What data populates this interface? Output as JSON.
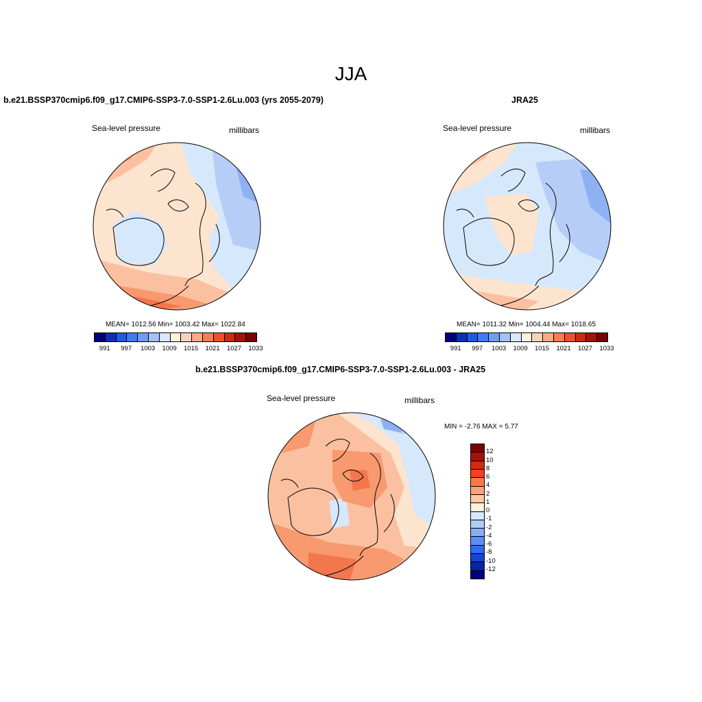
{
  "season": "JJA",
  "panel_left": {
    "title": "b.e21.BSSP370cmip6.f09_g17.CMIP6-SSP3-7.0-SSP1-2.6Lu.003 (yrs 2055-2079)",
    "variable": "Sea-level pressure",
    "units": "millibars",
    "stats": "MEAN= 1012.56  Min= 1003.42  Max= 1022.84"
  },
  "panel_right": {
    "title": "JRA25",
    "variable": "Sea-level pressure",
    "units": "millibars",
    "stats": "MEAN= 1011.32  Min= 1004.44  Max= 1018.65"
  },
  "panel_diff": {
    "title": "b.e21.BSSP370cmip6.f09_g17.CMIP6-SSP3-7.0-SSP1-2.6Lu.003 - JRA25",
    "variable": "Sea-level pressure",
    "units": "millibars",
    "minmax": "MIN =  -2.76 MAX =   5.77"
  },
  "colorbar_abs": {
    "colors": [
      "#000080",
      "#0a2fb8",
      "#1f5ae6",
      "#3f7af5",
      "#6f9cf5",
      "#a4c0f5",
      "#d6e8fb",
      "#fff0e0",
      "#fdd3b8",
      "#fbaa86",
      "#f77c53",
      "#f04f27",
      "#cf2a0a",
      "#a51208",
      "#7a0404"
    ],
    "ticks": [
      "991",
      "997",
      "1003",
      "1009",
      "1015",
      "1021",
      "1027",
      "1033"
    ]
  },
  "colorbar_diff": {
    "colors": [
      "#7a0404",
      "#a51208",
      "#d42b0a",
      "#f0441c",
      "#f87a48",
      "#fba27a",
      "#fdc8a4",
      "#fff0e0",
      "#d6e8fb",
      "#b0cbf6",
      "#89aff3",
      "#5c8ef4",
      "#2e6bf2",
      "#1445d0",
      "#0525a8",
      "#000080"
    ],
    "ticks": [
      "12",
      "10",
      "8",
      "6",
      "4",
      "2",
      "1",
      "0",
      "-1",
      "-2",
      "-4",
      "-6",
      "-8",
      "-10",
      "-12"
    ]
  }
}
